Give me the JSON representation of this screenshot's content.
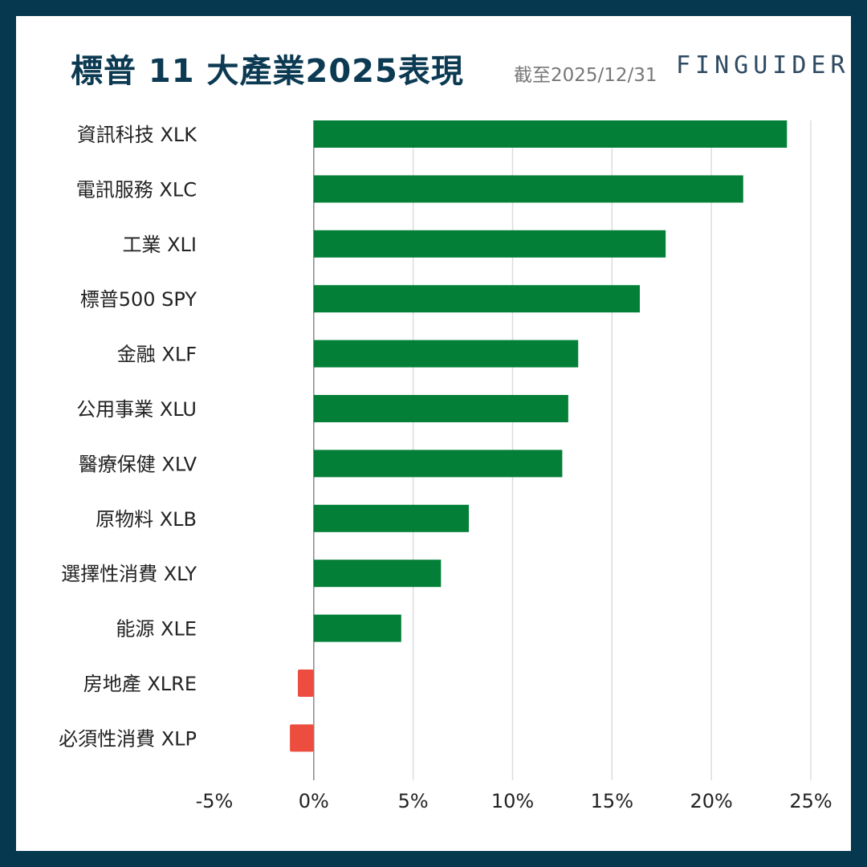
{
  "header": {
    "title": "標普 11 大產業2025表現",
    "date": "截至2025/12/31",
    "logo": "FINGUIDER"
  },
  "chart_data": {
    "type": "bar",
    "orientation": "horizontal",
    "title": "標普 11 大產業2025表現",
    "categories": [
      "資訊科技 XLK",
      "電訊服務 XLC",
      "工業 XLI",
      "標普500 SPY",
      "金融 XLF",
      "公用事業 XLU",
      "醫療保健 XLV",
      "原物料 XLB",
      "選擇性消費 XLY",
      "能源 XLE",
      "房地產 XLRE",
      "必須性消費 XLP"
    ],
    "values": [
      23.8,
      21.6,
      17.7,
      16.4,
      13.3,
      12.8,
      12.5,
      7.8,
      6.4,
      4.4,
      -0.8,
      -1.2
    ],
    "xlim": [
      -5,
      25
    ],
    "ticks": [
      -5,
      0,
      5,
      10,
      15,
      20,
      25
    ],
    "tick_labels": [
      "-5%",
      "0%",
      "5%",
      "10%",
      "15%",
      "20%",
      "25%"
    ],
    "grid": true,
    "colors": {
      "positive": "#037f38",
      "negative": "#ec4d3f",
      "grid": "#dddddd",
      "axis": "#888888"
    }
  }
}
